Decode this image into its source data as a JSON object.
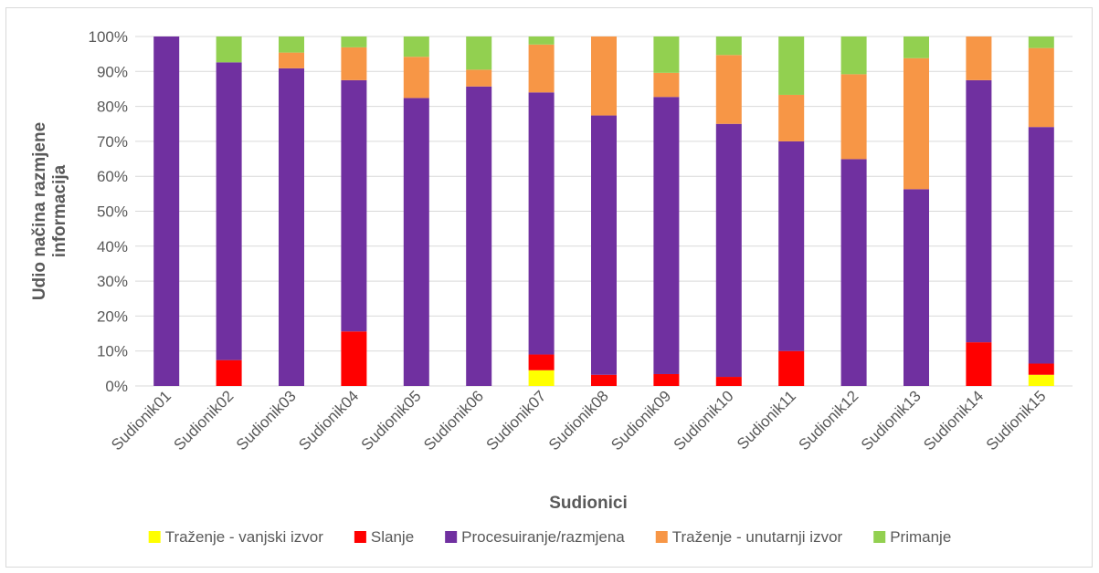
{
  "chart_data": {
    "type": "bar",
    "stacked": true,
    "percent": true,
    "xlabel": "Sudionici",
    "ylabel_lines": [
      "Udio načina razmjene",
      "informacija"
    ],
    "y_ticks": [
      "0%",
      "10%",
      "20%",
      "30%",
      "40%",
      "50%",
      "60%",
      "70%",
      "80%",
      "90%",
      "100%"
    ],
    "ylim": [
      0,
      100
    ],
    "grid": true,
    "legend_position": "bottom",
    "categories": [
      "Sudionik01",
      "Sudionik02",
      "Sudionik03",
      "Sudionik04",
      "Sudionik05",
      "Sudionik06",
      "Sudionik07",
      "Sudionik08",
      "Sudionik09",
      "Sudionik10",
      "Sudionik11",
      "Sudionik12",
      "Sudionik13",
      "Sudionik14",
      "Sudionik15"
    ],
    "series": [
      {
        "name": "Traženje - vanjski izvor",
        "color": "#ffff00",
        "values": [
          0,
          0,
          0,
          0,
          0,
          0,
          4.5,
          0,
          0,
          0,
          0,
          0,
          0,
          0,
          3.2
        ]
      },
      {
        "name": "Slanje",
        "color": "#ff0000",
        "values": [
          0,
          7.4,
          0,
          15.6,
          0,
          0,
          4.5,
          3.2,
          3.4,
          2.6,
          10,
          0,
          0,
          12.5,
          3.2
        ]
      },
      {
        "name": "Procesuiranje/razmjena",
        "color": "#7030a0",
        "values": [
          100,
          85.2,
          90.9,
          71.9,
          82.4,
          85.7,
          75,
          74.2,
          79.3,
          72.4,
          60,
          64.9,
          56.3,
          75,
          67.7
        ]
      },
      {
        "name": "Traženje - unutarnji izvor",
        "color": "#f79646",
        "values": [
          0,
          0,
          4.5,
          9.4,
          11.8,
          4.8,
          13.7,
          22.6,
          6.9,
          19.7,
          13.3,
          24.3,
          37.5,
          12.5,
          22.6
        ]
      },
      {
        "name": "Primanje",
        "color": "#92d050",
        "values": [
          0,
          7.4,
          4.6,
          3.1,
          5.8,
          9.5,
          2.3,
          0,
          10.4,
          5.3,
          16.7,
          10.8,
          6.2,
          0,
          3.3
        ]
      }
    ]
  }
}
